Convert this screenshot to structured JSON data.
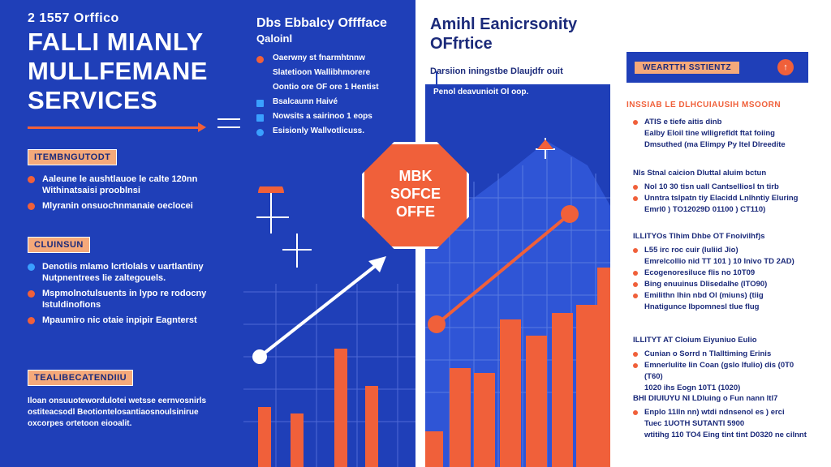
{
  "left": {
    "small_heading": "2 1557 Orffico",
    "title_lines": [
      "FALLI MIANLY",
      "MULLFEMANE",
      "SERVICES"
    ],
    "section1": {
      "label": "ITEMBNGUTODT",
      "items": [
        "Aaleune le aushtlauoe le calte 120nn Withinatsaisi prooblnsi",
        "Mlyranin onsuochnmanaie oeclocei"
      ]
    },
    "section2": {
      "label": "CLUINSUN",
      "items": [
        "Denotiis mlamo lcrtlolals v uartlantiny Nutpnentrees lie zaltegouels.",
        "Mspmolnotulsuents in lypo re rodocny Istuldinofions",
        "Mpaumiro nic otaie inpipir Eagnterst"
      ]
    },
    "section3": {
      "label": "TEALIBECATENDIIU",
      "paragraph": "Iloan onsuuotewordulotei wetsse eernvosnirls ostiteacsodl Beotiontelosantiaosnoulsinirue oxcorpes ortetoon eiooalit."
    }
  },
  "middle": {
    "heading": "Dbs Ebbalcy Offfface",
    "subheading": "Qaloinl",
    "items": [
      "Oaerwny st fnarmhtnnw",
      "Slatetioon Wallibhmorere",
      "Oontio ore OF ore 1 Hentist",
      "Bsalcaunn Haivé",
      "Nowsits a sairinoo 1 eops",
      "Esisionly Wallvotlicuss."
    ],
    "octagon_lines": [
      "MBK",
      "SOFCE",
      "OFFE"
    ]
  },
  "right": {
    "title_lines": [
      "Amihl Eanicrsonity",
      "OFfrtice"
    ],
    "subtitle": "Darsiion iningstbe Dlaujdfr ouit",
    "chart_caption": "Penol deavunioit Ol oop.",
    "wealth_label": "WEARTTH SSTIENTZ",
    "wealth_button": "↑",
    "heading1": "INSSIAB LE DLHCUIAUSIH MSOORN",
    "list1": [
      "ATIS e tiefe aitis dinb",
      "Ealby Eloil tine wlligrefldt ftat foiing",
      "Dmsuthed (ma Elimpy Py ltel Dlreedite"
    ],
    "heading2": "Nls Stnal caicion Dluttal aluim bctun",
    "list2": [
      "Nol 10 30 tisn uall Cantselliosl tn tirb",
      "Unntra tslpatn tiy Elacidd Lnlhntiy Eluring",
      "Emrl0 ) TO12029D 01100 ) CT110)"
    ],
    "heading3": "ILLITYOs Tlhim Dhbe OT Fnoivilhf)s",
    "list3": [
      "L55 irc roc cuir (Iuliid Jio)",
      "Emrelcollio nid TT 101 ) 10 lnivo TD 2AD)",
      "Ecogenoresiluce flis no 10T09",
      "Bing enuuinus Dlisedalhe (ITO90)",
      "Emilithn lhin nbd Ol (miuns) (tiig",
      "Hnatigunce lbpomnesl tlue flug"
    ],
    "heading4": "ILLITYT AT Cloium Eiyuniuo Eulio",
    "list4": [
      "Cunian o Sorrd n Tlalltiming Erinis",
      "Emnerlulite lin Coan (gslo Ifulio) dis (0T0 (T60)",
      "1020 ihs Eogn 10T1 (1020)"
    ],
    "heading5": "BHI DIUIUYU NI LDluing o Fun nann ltl7",
    "list5": [
      "Enplo 11lln nn) wtdi ndnsenol es ) erci",
      "Tuec 1UOTH SUTANTI 5900",
      "wtitihg 110 TO4 Eing tint tint D0320 ne cilnnt"
    ]
  },
  "colors": {
    "blue": "#1f3fb8",
    "orange": "#f0603a",
    "peach": "#f5a97a",
    "navy": "#1b2a7a",
    "white": "#ffffff"
  }
}
